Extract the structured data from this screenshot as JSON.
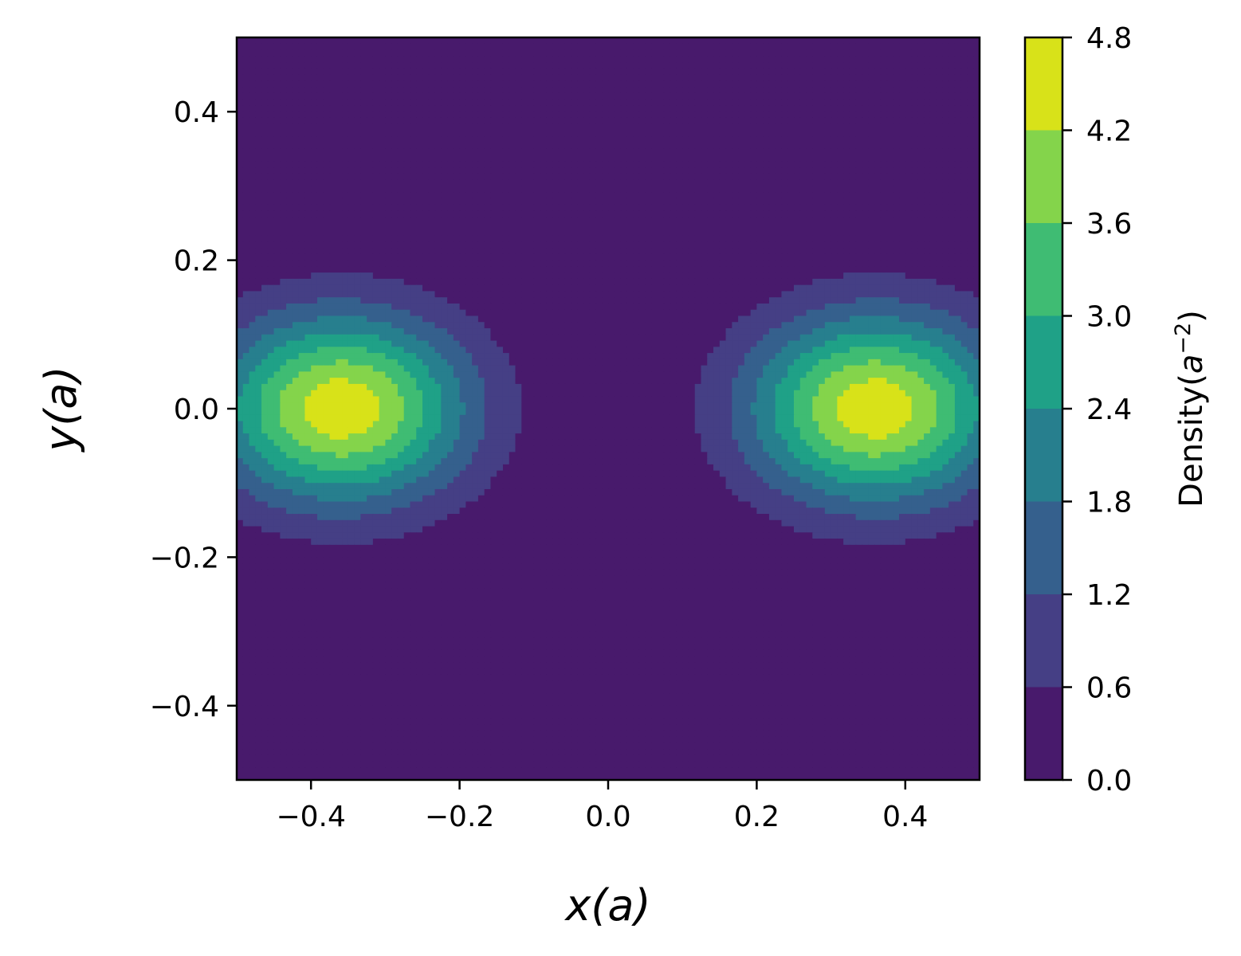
{
  "chart_data": {
    "type": "contourf",
    "xlabel": "x(a)",
    "ylabel": "y(a)",
    "xlim": [
      -0.5,
      0.5
    ],
    "ylim": [
      -0.5,
      0.5
    ],
    "x_ticks": [
      "−0.4",
      "−0.2",
      "0.0",
      "0.2",
      "0.4"
    ],
    "x_tick_values": [
      -0.4,
      -0.2,
      0.0,
      0.2,
      0.4
    ],
    "y_ticks": [
      "−0.4",
      "−0.2",
      "0.0",
      "0.2",
      "0.4"
    ],
    "y_tick_values": [
      -0.4,
      -0.2,
      0.0,
      0.2,
      0.4
    ],
    "colorbar": {
      "label_prefix": "Density(",
      "label_var": "a",
      "label_exp": "−2",
      "label_suffix": ")",
      "levels": [
        0.0,
        0.6,
        1.2,
        1.8,
        2.4,
        3.0,
        3.6,
        4.2,
        4.8
      ],
      "tick_labels": [
        "0.0",
        "0.6",
        "1.2",
        "1.8",
        "2.4",
        "3.0",
        "3.6",
        "4.2",
        "4.8"
      ],
      "colors": [
        "#481a6c",
        "#453f85",
        "#35608d",
        "#277f8e",
        "#1fa187",
        "#3fbc73",
        "#84d44b",
        "#d8e219"
      ]
    },
    "density_model": {
      "description": "symmetric lobes centered at x=±0.36, y=0",
      "peak_density": 4.6,
      "lobe_centers_x": [
        -0.36,
        0.36
      ],
      "near_zero_band_x": [
        -0.12,
        0.12
      ]
    },
    "grid": false,
    "legend": "none"
  }
}
